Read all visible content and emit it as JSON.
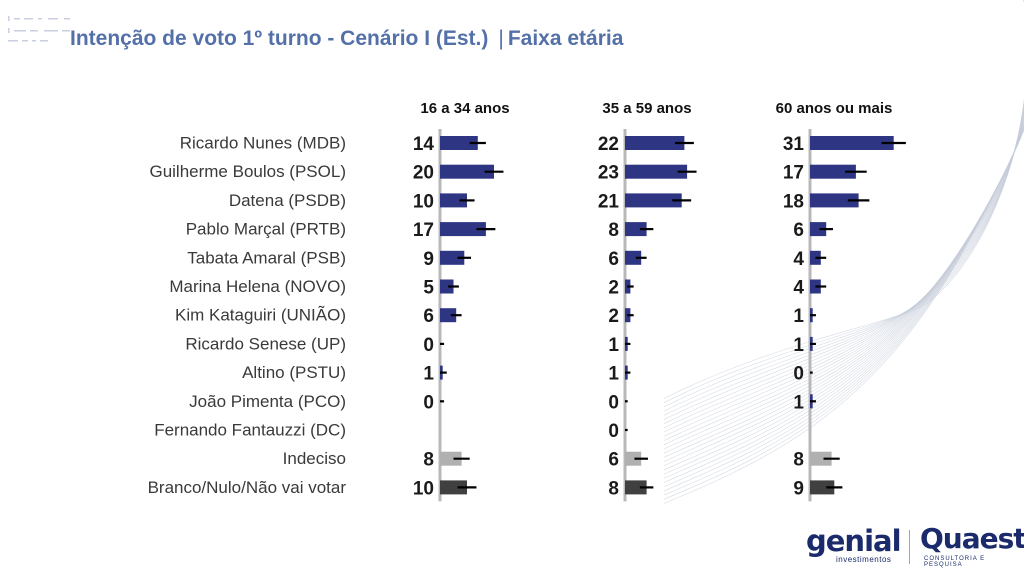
{
  "header": {
    "title": "Intenção de voto 1º turno - Cenário I (Est.)",
    "separator": "|",
    "subtitle": "Faixa etária"
  },
  "logos": {
    "genial": "genial",
    "genial_sub": "investimentos",
    "quaest": "Quaest",
    "quaest_sub": "CONSULTORIA E PESQUISA"
  },
  "colors": {
    "title": "#5470a8",
    "candidate_bar": "#2e3684",
    "undecided_bar": "#b0b0b0",
    "blank_bar": "#404040",
    "error_bar": "#000000",
    "axis_line": "#b8b8b8"
  },
  "chart_data": {
    "type": "bar",
    "orientation": "horizontal",
    "categories": [
      "Ricardo Nunes (MDB)",
      "Guilherme Boulos (PSOL)",
      "Datena (PSDB)",
      "Pablo Marçal (PRTB)",
      "Tabata Amaral (PSB)",
      "Marina Helena (NOVO)",
      "Kim Kataguiri (UNIÃO)",
      "Ricardo Senese (UP)",
      "Altino (PSTU)",
      "João Pimenta (PCO)",
      "Fernando Fantauzzi (DC)",
      "Indeciso",
      "Branco/Nulo/Não vai votar"
    ],
    "series": [
      {
        "name": "16 a 34 anos",
        "values": [
          14,
          20,
          10,
          17,
          9,
          5,
          6,
          0,
          1,
          0,
          null,
          8,
          10
        ],
        "error": [
          3,
          3.5,
          2.8,
          3.5,
          2.5,
          2,
          2,
          1.5,
          1.5,
          1.5,
          null,
          3,
          3.5
        ]
      },
      {
        "name": "35 a 59 anos",
        "values": [
          22,
          23,
          21,
          8,
          6,
          2,
          2,
          1,
          1,
          0,
          0,
          6,
          8
        ],
        "error": [
          3.5,
          3.5,
          3.5,
          2.5,
          2,
          1.2,
          1.2,
          1,
          1,
          1,
          1,
          2.5,
          2.5
        ]
      },
      {
        "name": "60 anos ou mais",
        "values": [
          31,
          17,
          18,
          6,
          4,
          4,
          1,
          1,
          0,
          1,
          null,
          8,
          9
        ],
        "error": [
          4.5,
          4,
          4,
          2.5,
          2,
          2,
          1.2,
          1.2,
          1,
          1.2,
          null,
          3,
          3
        ]
      }
    ],
    "bar_kind": [
      "candidate",
      "candidate",
      "candidate",
      "candidate",
      "candidate",
      "candidate",
      "candidate",
      "candidate",
      "candidate",
      "candidate",
      "candidate",
      "undecided",
      "blank"
    ],
    "xlim": [
      0,
      40
    ],
    "grid": false,
    "legend": "none"
  }
}
